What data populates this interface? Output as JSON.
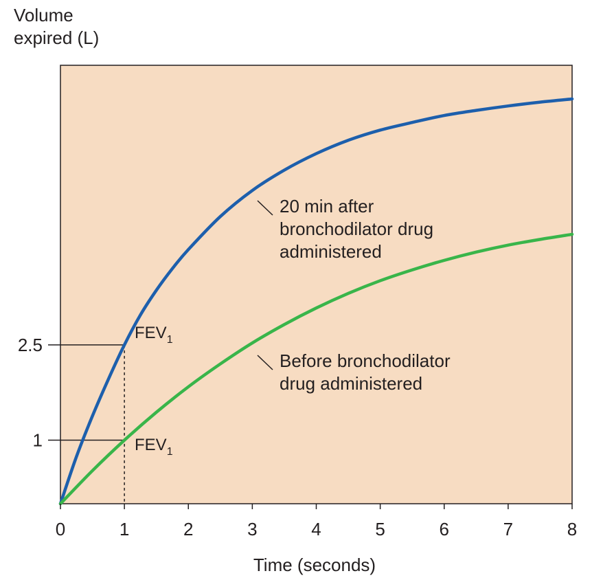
{
  "chart_data": {
    "type": "line",
    "title": "",
    "xlabel": "Time (seconds)",
    "ylabel": [
      "Volume",
      "expired (L)"
    ],
    "xlim": [
      0,
      8
    ],
    "ylim": [
      0,
      6.9
    ],
    "xticks": [
      "0",
      "1",
      "2",
      "3",
      "4",
      "5",
      "6",
      "7",
      "8"
    ],
    "yticks": [
      {
        "value": 2.5,
        "label": "2.5"
      },
      {
        "value": 1,
        "label": "1"
      }
    ],
    "grid": false,
    "colors": {
      "plot_background": "#f7dcc2",
      "after_series": "#1d5fac",
      "before_series": "#39b54a"
    },
    "series": [
      {
        "key": "after",
        "x": [
          0,
          0.25,
          0.5,
          0.75,
          1,
          1.25,
          1.5,
          1.75,
          2,
          2.5,
          3,
          3.5,
          4,
          4.5,
          5,
          5.5,
          6,
          6.5,
          7,
          7.5,
          8
        ],
        "y": [
          0,
          0.74,
          1.38,
          1.96,
          2.5,
          2.97,
          3.36,
          3.7,
          4.0,
          4.52,
          4.93,
          5.25,
          5.51,
          5.72,
          5.88,
          6.0,
          6.11,
          6.19,
          6.26,
          6.32,
          6.37
        ]
      },
      {
        "key": "before",
        "x": [
          0,
          0.5,
          1,
          1.5,
          2,
          2.5,
          3,
          3.5,
          4,
          4.5,
          5,
          5.5,
          6,
          6.5,
          7,
          7.5,
          8
        ],
        "y": [
          0,
          0.52,
          1.0,
          1.44,
          1.84,
          2.2,
          2.53,
          2.82,
          3.08,
          3.31,
          3.51,
          3.68,
          3.83,
          3.96,
          4.07,
          4.16,
          4.24
        ]
      }
    ],
    "annotations": {
      "after_label": [
        "20 min after",
        "bronchodilator drug",
        "administered"
      ],
      "before_label": [
        "Before bronchodilator",
        "drug administered"
      ],
      "fev_main": "FEV",
      "fev_sub": "1",
      "fev_points": [
        {
          "x": 1,
          "y": 2.5
        },
        {
          "x": 1,
          "y": 1
        }
      ]
    }
  }
}
